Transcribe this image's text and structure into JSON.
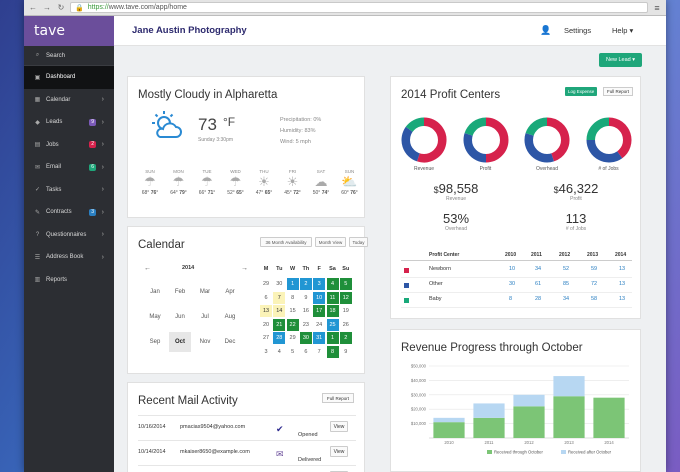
{
  "browser": {
    "url_https": "https://",
    "url_rest": "www.tave.com/app/home"
  },
  "colors": {
    "sidebar": "#2c2e33",
    "brand": "#6b4e9b",
    "green": "#1fa67a",
    "red": "#d6224c",
    "blue": "#2d56a6",
    "teal": "#19a97a",
    "gray": "#9aa0a6"
  },
  "app": {
    "logo": "tave",
    "studio": "Jane Austin Photography",
    "settings": "Settings",
    "help": "Help ▾",
    "new_lead": "New Lead ▾"
  },
  "sidebar": {
    "search": "Search",
    "items": [
      {
        "label": "Dashboard",
        "icon": "dashboard-icon",
        "chev": false
      },
      {
        "label": "Calendar",
        "icon": "calendar-icon",
        "chev": true
      },
      {
        "label": "Leads",
        "icon": "leads-icon",
        "chev": true,
        "badge": "9",
        "badge_color": "#7b5ab8"
      },
      {
        "label": "Jobs",
        "icon": "jobs-icon",
        "chev": true,
        "badge": "2",
        "badge_color": "#d6224c"
      },
      {
        "label": "Email",
        "icon": "email-icon",
        "chev": true,
        "badge": "6",
        "badge_color": "#1fa67a"
      },
      {
        "label": "Tasks",
        "icon": "tasks-icon",
        "chev": true
      },
      {
        "label": "Contracts",
        "icon": "contracts-icon",
        "chev": true,
        "badge": "3",
        "badge_color": "#2a7fc2"
      },
      {
        "label": "Questionnaires",
        "icon": "questionnaires-icon",
        "chev": true
      },
      {
        "label": "Address Book",
        "icon": "address-book-icon",
        "chev": true
      },
      {
        "label": "Reports",
        "icon": "reports-icon",
        "chev": false
      }
    ]
  },
  "weather": {
    "title": "Mostly Cloudy in Alpharetta",
    "temp": "73",
    "unit": "°F",
    "time": "Sunday 3:30pm",
    "precip": "Precipitation: 0%",
    "humidity": "Humidity: 83%",
    "wind": "Wind: 5 mph",
    "days": [
      {
        "d": "SUN",
        "lo": "68",
        "hi": "76",
        "icon": "rain"
      },
      {
        "d": "MON",
        "lo": "64",
        "hi": "79",
        "icon": "rain"
      },
      {
        "d": "TUE",
        "lo": "66",
        "hi": "71",
        "icon": "rain"
      },
      {
        "d": "WED",
        "lo": "52",
        "hi": "65",
        "icon": "rain"
      },
      {
        "d": "THU",
        "lo": "47",
        "hi": "65",
        "icon": "sun"
      },
      {
        "d": "FRI",
        "lo": "45",
        "hi": "72",
        "icon": "sun"
      },
      {
        "d": "SAT",
        "lo": "50",
        "hi": "74",
        "icon": "cloud"
      },
      {
        "d": "SUN",
        "lo": "60",
        "hi": "76",
        "icon": "partly"
      }
    ]
  },
  "calendar": {
    "title": "Calendar",
    "btn1": "36 Month Availability",
    "btn2": "Month View",
    "btn3": "Today",
    "year": "2014",
    "months": [
      "Jan",
      "Feb",
      "Mar",
      "Apr",
      "May",
      "Jun",
      "Jul",
      "Aug",
      "Sep",
      "Oct",
      "Nov",
      "Dec"
    ],
    "dow": [
      "M",
      "Tu",
      "W",
      "Th",
      "F",
      "Sa",
      "Su"
    ],
    "days": [
      [
        "29",
        "",
        "30",
        "",
        "1",
        "blue",
        "2",
        "blue",
        "3",
        "blue",
        "4",
        "green",
        "5",
        "green"
      ],
      [
        "6",
        "",
        "7",
        "yellow",
        "8",
        "",
        "9",
        "",
        "10",
        "blue",
        "11",
        "green",
        "12",
        "green"
      ],
      [
        "13",
        "yellow",
        "14",
        "yellow",
        "15",
        "",
        "16",
        "",
        "17",
        "green",
        "18",
        "green",
        "19",
        ""
      ],
      [
        "20",
        "",
        "21",
        "green",
        "22",
        "green",
        "23",
        "",
        "24",
        "",
        "25",
        "blue",
        "26",
        ""
      ],
      [
        "27",
        "",
        "28",
        "blue",
        "29",
        "",
        "30",
        "green",
        "31",
        "blue",
        "1",
        "green",
        "2",
        "green"
      ],
      [
        "3",
        "",
        "4",
        "",
        "5",
        "",
        "6",
        "",
        "7",
        "",
        "8",
        "green",
        "9",
        ""
      ]
    ]
  },
  "mail": {
    "title": "Recent Mail Activity",
    "full": "Full Report",
    "view": "View",
    "rows": [
      {
        "date": "10/16/2014",
        "email": "pmacias9504@yahoo.com",
        "status": "Opened",
        "icon": "check-icon"
      },
      {
        "date": "10/14/2014",
        "email": "mkaiser8650@example.com",
        "status": "Delivered",
        "icon": "envelope-icon"
      },
      {
        "date": "10/12/2014",
        "email": "donald.tucker3645@yahoo.com",
        "status": "Clicked",
        "link": "(link)",
        "icon": "arrow-icon"
      }
    ]
  },
  "profit": {
    "title": "2014 Profit Centers",
    "log": "Log Expense",
    "full": "Full Report",
    "donuts": [
      "Revenue",
      "Profit",
      "Overhead",
      "# of Jobs"
    ],
    "stats": [
      {
        "v": "98,558",
        "l": "Revenue",
        "cur": "$"
      },
      {
        "v": "46,322",
        "l": "Profit",
        "cur": "$"
      },
      {
        "v": "53%",
        "l": "Overhead",
        "cur": ""
      },
      {
        "v": "113",
        "l": "# of Jobs",
        "cur": ""
      }
    ],
    "table_headers": [
      "Profit Center",
      "2010",
      "2011",
      "2012",
      "2013",
      "2014"
    ],
    "rows": [
      {
        "name": "Newborn",
        "color": "#d6224c",
        "vals": [
          "10",
          "34",
          "52",
          "59",
          "13"
        ]
      },
      {
        "name": "Other",
        "color": "#2d56a6",
        "vals": [
          "30",
          "61",
          "85",
          "72",
          "13"
        ]
      },
      {
        "name": "Baby",
        "color": "#19a97a",
        "vals": [
          "8",
          "28",
          "34",
          "58",
          "13"
        ]
      }
    ]
  },
  "chart_data": {
    "type": "bar",
    "title": "Revenue Progress through October",
    "categories": [
      "2010",
      "2011",
      "2012",
      "2013",
      "2014"
    ],
    "series": [
      {
        "name": "Received through October",
        "color": "#7cc576",
        "values": [
          11000,
          14000,
          22000,
          29000,
          28000
        ]
      },
      {
        "name": "Received after October",
        "color": "#b7d7f2",
        "values": [
          3000,
          10000,
          8000,
          14000,
          0
        ]
      }
    ],
    "ylim": [
      0,
      50000
    ],
    "yticks": [
      "$50,000",
      "$40,000",
      "$30,000",
      "$20,000",
      "$10,000"
    ]
  }
}
